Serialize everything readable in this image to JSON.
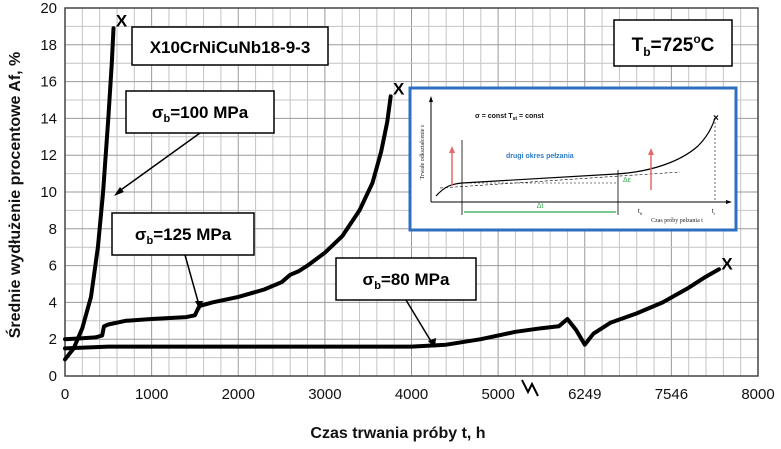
{
  "chart_data": {
    "type": "line",
    "xlabel": "Czas trwania próby t, h",
    "ylabel": "Średnie wydłużenie procentowe Af, %",
    "xlim": [
      0,
      8000
    ],
    "ylim": [
      0,
      20
    ],
    "x_ticks": [
      "0",
      "1000",
      "2000",
      "3000",
      "4000",
      "5000",
      "6249",
      "7546",
      "8000"
    ],
    "y_ticks": [
      "0",
      "2",
      "4",
      "6",
      "8",
      "10",
      "12",
      "14",
      "16",
      "18",
      "20"
    ],
    "grid": true,
    "material_label": "X10CrNiCuNb18-9-3",
    "temperature_label": {
      "symbol": "T",
      "sub": "b",
      "value": "=725",
      "sup": "o",
      "unit": "C"
    },
    "series": [
      {
        "label_symbol": "σ",
        "label_sub": "b",
        "label_value": "=100 MPa",
        "points": [
          [
            0,
            0.9
          ],
          [
            100,
            1.5
          ],
          [
            200,
            2.6
          ],
          [
            300,
            4.3
          ],
          [
            380,
            7.0
          ],
          [
            440,
            10.0
          ],
          [
            500,
            14.0
          ],
          [
            540,
            17.0
          ],
          [
            560,
            18.9
          ]
        ],
        "rupture": [
          560,
          19.1
        ]
      },
      {
        "label_symbol": "σ",
        "label_sub": "b",
        "label_value": "=125 MPa",
        "points": [
          [
            0,
            2.0
          ],
          [
            200,
            2.05
          ],
          [
            350,
            2.1
          ],
          [
            430,
            2.2
          ],
          [
            450,
            2.7
          ],
          [
            500,
            2.8
          ],
          [
            700,
            3.0
          ],
          [
            1000,
            3.1
          ],
          [
            1400,
            3.2
          ],
          [
            1500,
            3.3
          ],
          [
            1550,
            3.8
          ],
          [
            1700,
            4.0
          ],
          [
            2000,
            4.3
          ],
          [
            2300,
            4.7
          ],
          [
            2500,
            5.1
          ],
          [
            2600,
            5.5
          ],
          [
            2700,
            5.7
          ],
          [
            2800,
            6.0
          ],
          [
            3000,
            6.7
          ],
          [
            3200,
            7.6
          ],
          [
            3400,
            9.0
          ],
          [
            3550,
            10.5
          ],
          [
            3650,
            12.2
          ],
          [
            3720,
            13.8
          ],
          [
            3760,
            15.2
          ]
        ],
        "rupture": [
          3760,
          15.4
        ]
      },
      {
        "label_symbol": "σ",
        "label_sub": "b",
        "label_value": "=80 MPa",
        "points": [
          [
            0,
            1.5
          ],
          [
            500,
            1.6
          ],
          [
            1000,
            1.6
          ],
          [
            2000,
            1.6
          ],
          [
            3000,
            1.6
          ],
          [
            4000,
            1.6
          ],
          [
            4400,
            1.7
          ],
          [
            4800,
            2.0
          ],
          [
            5200,
            2.4
          ],
          [
            5500,
            2.6
          ],
          [
            5700,
            2.7
          ],
          [
            5800,
            3.1
          ],
          [
            5900,
            2.5
          ],
          [
            6000,
            1.7
          ],
          [
            6100,
            2.3
          ],
          [
            6300,
            2.9
          ],
          [
            6600,
            3.4
          ],
          [
            6900,
            4.0
          ],
          [
            7200,
            4.8
          ],
          [
            7400,
            5.4
          ],
          [
            7550,
            5.8
          ]
        ],
        "rupture": [
          7550,
          5.9
        ]
      }
    ],
    "inset": {
      "title": "σ = const   T",
      "title_sub": "st",
      "title_tail": " = const",
      "ylabel": "Trwałe odkształcenie ε",
      "stage_label": "drugi okres pełzania",
      "delta_t": "Δt",
      "delta_eps": "Δε",
      "t_mark": "t",
      "t_mark_sub": "II",
      "t_end": "t",
      "t_end_sub": "r",
      "xlabel": "Czas próby pełzania t",
      "colors": {
        "border": "#2f6fc0",
        "stage": "#2e7bc4",
        "delta": "#2fa84f",
        "marker": "#e46a6a"
      }
    }
  }
}
